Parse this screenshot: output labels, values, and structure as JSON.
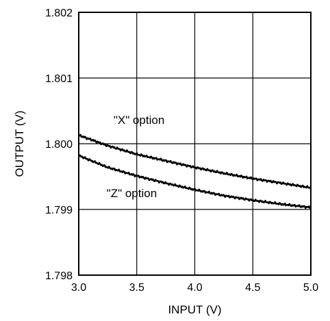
{
  "chart_data": {
    "type": "line",
    "xlabel": "INPUT (V)",
    "ylabel": "OUTPUT (V)",
    "xlim": [
      3.0,
      5.0
    ],
    "ylim": [
      1.798,
      1.802
    ],
    "xticks": [
      "3.0",
      "3.5",
      "4.0",
      "4.5",
      "5.0"
    ],
    "yticks": [
      "1.798",
      "1.799",
      "1.800",
      "1.801",
      "1.802"
    ],
    "grid": true,
    "legend": "none",
    "series": [
      {
        "name": "\"X\" option",
        "x": [
          3.0,
          3.25,
          3.5,
          3.75,
          4.0,
          4.25,
          4.5,
          4.75,
          5.0
        ],
        "y": [
          1.80013,
          1.79997,
          1.79984,
          1.79974,
          1.79964,
          1.79955,
          1.79947,
          1.7994,
          1.79933
        ],
        "color": "#000000"
      },
      {
        "name": "\"Z\" option",
        "x": [
          3.0,
          3.25,
          3.5,
          3.75,
          4.0,
          4.25,
          4.5,
          4.75,
          5.0
        ],
        "y": [
          1.79982,
          1.79964,
          1.79951,
          1.7994,
          1.7993,
          1.79921,
          1.79914,
          1.79908,
          1.79903
        ],
        "color": "#000000"
      }
    ],
    "annotations": [
      {
        "text": "\"X\" option",
        "x": 3.3,
        "y": 1.8003
      },
      {
        "text": "\"Z\" option",
        "x": 3.24,
        "y": 1.79919
      }
    ]
  }
}
